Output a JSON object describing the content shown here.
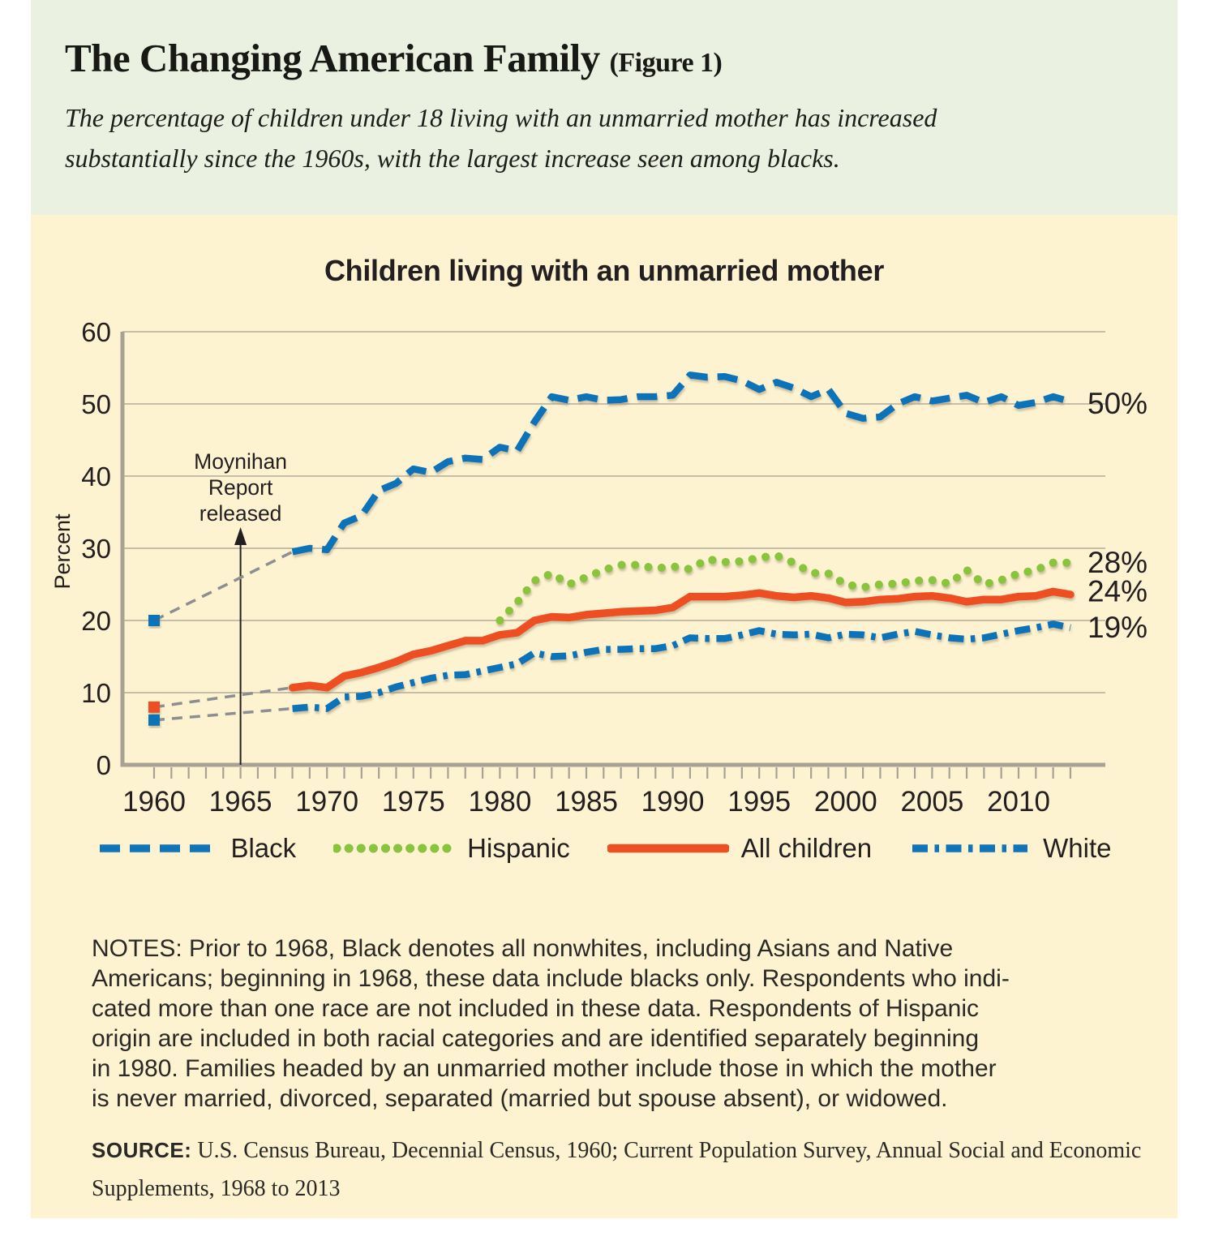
{
  "header": {
    "title": "The Changing American Family",
    "title_suffix": "(Figure 1)",
    "subtitle_lines": [
      "The percentage of children under 18 living with an unmarried mother has increased",
      "substantially since the 1960s, with the largest increase seen among blacks."
    ],
    "bg_color": "#eaf1e1"
  },
  "figure": {
    "chart_title": "Children living with an unmarried mother",
    "bg_color": "#fdf3d1"
  },
  "chart_data": {
    "type": "line",
    "title": "Children living with an unmarried mother",
    "xlabel": "",
    "ylabel": "Percent",
    "ylim": [
      0,
      60
    ],
    "ytick_step": 10,
    "xlim": [
      1960,
      2013
    ],
    "xticks": [
      1960,
      1965,
      1970,
      1975,
      1980,
      1985,
      1990,
      1995,
      2000,
      2005,
      2010
    ],
    "grid": "horizontal gridlines on",
    "legend_position": "bottom",
    "colors": {
      "blue": "#1173b8",
      "green": "#8ac43e",
      "orange": "#ee4f23",
      "grid": "#b5ad9d",
      "axis": "#a9a195",
      "connector": "#8e8e91",
      "text": "#231f20"
    },
    "annotation": {
      "lines": [
        "Moynihan",
        "Report",
        "released"
      ],
      "year": 1965
    },
    "start_points_1960": [
      {
        "series": "Black",
        "value": 20
      },
      {
        "series": "All children",
        "value": 8
      },
      {
        "series": "White",
        "value": 6.2
      }
    ],
    "series": [
      {
        "name": "Black",
        "color": "#1173b8",
        "style": "dashed",
        "start_year": 1968,
        "values": [
          29.5,
          30,
          29.8,
          33.5,
          34.5,
          38,
          39,
          41,
          40.5,
          42,
          42.5,
          42.3,
          44,
          43.5,
          47.5,
          51,
          50.5,
          51,
          50.5,
          50.6,
          51,
          51,
          51.2,
          54,
          53.7,
          53.8,
          53.2,
          52,
          53,
          52.2,
          51,
          52,
          48.7,
          48,
          48.2,
          50,
          51,
          50.4,
          50.8,
          51.2,
          50.2,
          51,
          49.8,
          50.2,
          51,
          50.3
        ]
      },
      {
        "name": "Hispanic",
        "color": "#8ac43e",
        "style": "dotted",
        "start_year": 1980,
        "values": [
          20,
          22.5,
          25.5,
          26.5,
          25,
          26,
          27,
          27.7,
          27.7,
          27.2,
          27.5,
          27.1,
          28.5,
          28.1,
          28.2,
          28.7,
          29,
          28,
          26.6,
          26.5,
          25,
          24.6,
          25,
          25.1,
          25.5,
          25.6,
          25.1,
          27,
          25,
          25.6,
          26.5,
          27,
          28,
          28
        ]
      },
      {
        "name": "All children",
        "color": "#ee4f23",
        "style": "solid",
        "start_year": 1968,
        "values": [
          10.7,
          11,
          10.7,
          12.3,
          12.8,
          13.5,
          14.3,
          15.3,
          15.8,
          16.5,
          17.2,
          17.2,
          18,
          18.3,
          20,
          20.5,
          20.4,
          20.8,
          21,
          21.2,
          21.3,
          21.4,
          21.8,
          23.3,
          23.3,
          23.3,
          23.5,
          23.8,
          23.4,
          23.2,
          23.4,
          23.1,
          22.5,
          22.6,
          22.9,
          23,
          23.3,
          23.4,
          23.1,
          22.6,
          22.9,
          22.9,
          23.3,
          23.4,
          24,
          23.6
        ]
      },
      {
        "name": "White",
        "color": "#1173b8",
        "style": "dashdot",
        "start_year": 1968,
        "values": [
          7.8,
          8,
          7.8,
          9.4,
          9.5,
          10,
          10.8,
          11.4,
          12,
          12.4,
          12.5,
          13,
          13.5,
          14,
          15.5,
          15,
          15.1,
          15.6,
          16,
          16,
          16.1,
          16.1,
          16.5,
          17.6,
          17.5,
          17.5,
          18,
          18.6,
          18.1,
          18,
          18.1,
          17.6,
          18.1,
          18,
          17.6,
          18.1,
          18.5,
          18,
          17.6,
          17.4,
          17.6,
          18.1,
          18.6,
          19,
          19.5,
          19
        ]
      }
    ],
    "end_labels": [
      {
        "text": "50%",
        "value": 50
      },
      {
        "text": "28%",
        "value": 28
      },
      {
        "text": "24%",
        "value": 24
      },
      {
        "text": "19%",
        "value": 19
      }
    ],
    "legend_order": [
      "Black",
      "Hispanic",
      "All children",
      "White"
    ]
  },
  "notes": {
    "lines": [
      "NOTES: Prior to 1968, Black denotes all nonwhites, including Asians and Native",
      "Americans; beginning in 1968, these data include blacks only. Respondents who indi-",
      "cated more than one race are not included in these data. Respondents of Hispanic",
      "origin are included in both racial categories and are identified separately beginning",
      "in 1980. Families headed by an unmarried mother include those in which the mother",
      "is never married, divorced, separated (married but spouse absent), or widowed."
    ]
  },
  "source": {
    "label": "SOURCE:",
    "lines": [
      "U.S. Census Bureau, Decennial Census, 1960; Current Population Survey, Annual Social and Economic",
      "Supplements, 1968 to 2013"
    ]
  }
}
